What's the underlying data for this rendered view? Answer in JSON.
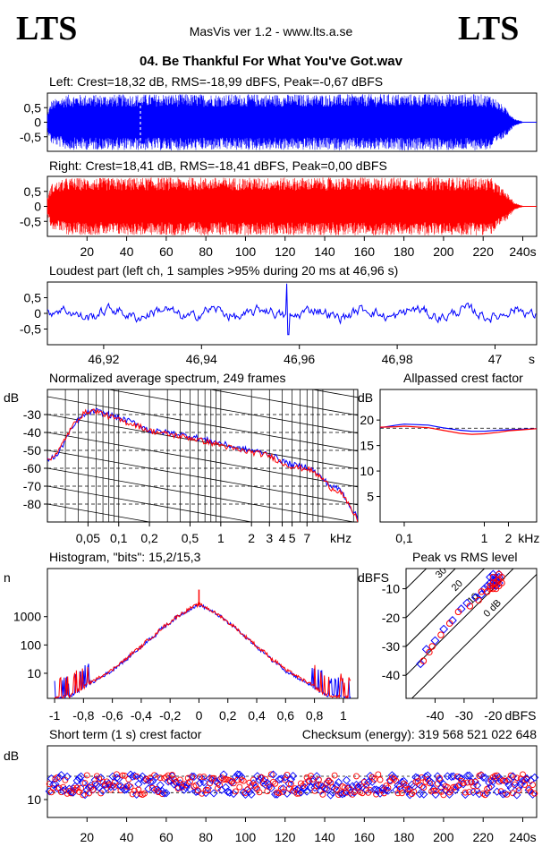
{
  "header": {
    "logo_left": "LTS",
    "logo_right": "LTS",
    "app_title": "MasVis ver 1.2 - www.lts.a.se",
    "file_title": "04. Be Thankful For What You've Got.wav"
  },
  "colors": {
    "left": "#0000ff",
    "right": "#ff0000",
    "axis": "#000000",
    "text": "#000000"
  },
  "chart_data": [
    {
      "id": "left-waveform",
      "type": "line",
      "title": "Left: Crest=18,32 dB, RMS=-18,99 dBFS, Peak=-0,67 dBFS",
      "ylim": [
        -1,
        1
      ],
      "y_ticks": [
        "0,5",
        "0",
        "-0,5"
      ],
      "y_tick_values": [
        0.5,
        0,
        -0.5
      ],
      "xlim": [
        0,
        247
      ],
      "envelope_x": [
        0,
        2,
        10,
        30,
        60,
        100,
        140,
        180,
        210,
        224,
        232,
        236,
        240,
        247
      ],
      "envelope_amp": [
        0.3,
        0.75,
        0.95,
        0.95,
        0.97,
        0.96,
        0.96,
        0.97,
        0.97,
        0.95,
        0.45,
        0.12,
        0.02,
        0.0
      ],
      "marker_x": 46.96
    },
    {
      "id": "right-waveform",
      "type": "line",
      "title": "Right: Crest=18,41 dB, RMS=-18,41 dBFS, Peak=0,00 dBFS",
      "ylim": [
        -1,
        1
      ],
      "y_ticks": [
        "0,5",
        "0",
        "-0,5"
      ],
      "y_tick_values": [
        0.5,
        0,
        -0.5
      ],
      "xlim": [
        0,
        247
      ],
      "x_ticks": [
        "20",
        "40",
        "60",
        "80",
        "100",
        "120",
        "140",
        "160",
        "180",
        "200",
        "220",
        "240s"
      ],
      "x_tick_values": [
        20,
        40,
        60,
        80,
        100,
        120,
        140,
        160,
        180,
        200,
        220,
        240
      ],
      "envelope_x": [
        0,
        2,
        10,
        30,
        60,
        100,
        140,
        180,
        210,
        224,
        232,
        236,
        240,
        247
      ],
      "envelope_amp": [
        0.3,
        0.75,
        0.95,
        0.95,
        0.97,
        0.96,
        0.96,
        0.97,
        0.97,
        0.95,
        0.45,
        0.12,
        0.02,
        0.0
      ]
    },
    {
      "id": "loudest-part",
      "type": "line",
      "title": "Loudest part (left  ch, 1 samples >95% during 20 ms at 46,96 s)",
      "xlim": [
        46.9085,
        47.0085
      ],
      "ylim": [
        -1,
        1
      ],
      "y_ticks": [
        "0,5",
        "0",
        "-0,5"
      ],
      "y_tick_values": [
        0.5,
        0,
        -0.5
      ],
      "x_ticks": [
        "46,92",
        "46,94",
        "46,96",
        "46,98",
        "47",
        "s"
      ],
      "x_tick_values": [
        46.92,
        46.94,
        46.96,
        46.98,
        47.0,
        47.0075
      ],
      "spike_x": 46.9574,
      "spike_values": [
        0.95,
        -0.68
      ],
      "baseline_noise": 0.12
    },
    {
      "id": "average-spectrum",
      "type": "line",
      "title": "Normalized average spectrum, 249 frames",
      "ylabel": "dB",
      "ylim": [
        -90,
        -16
      ],
      "y_ticks": [
        "-30",
        "-40",
        "-50",
        "-60",
        "-70",
        "-80"
      ],
      "y_tick_values": [
        -30,
        -40,
        -50,
        -60,
        -70,
        -80
      ],
      "x_scale": "log",
      "xlim": [
        0.02,
        22
      ],
      "x_ticks": [
        "0,05",
        "0,1",
        "0,2",
        "0,5",
        "1",
        "2",
        "3",
        "4",
        "5",
        "7",
        "kHz"
      ],
      "x_tick_values": [
        0.05,
        0.1,
        0.2,
        0.5,
        1,
        2,
        3,
        4,
        5,
        7,
        15
      ],
      "freq": [
        0.02,
        0.025,
        0.03,
        0.04,
        0.05,
        0.06,
        0.08,
        0.1,
        0.15,
        0.2,
        0.3,
        0.5,
        0.7,
        1,
        1.5,
        2,
        3,
        4,
        5,
        6,
        7,
        8,
        10,
        12,
        15,
        18,
        22
      ],
      "series": [
        {
          "name": "left",
          "values": [
            -55,
            -53,
            -44,
            -33,
            -29,
            -28,
            -30,
            -32,
            -35,
            -39,
            -40,
            -42,
            -44,
            -46,
            -49,
            -50,
            -52,
            -56,
            -58,
            -59,
            -59,
            -61,
            -66,
            -70,
            -72,
            -80,
            -88
          ]
        },
        {
          "name": "right",
          "values": [
            -55,
            -52,
            -43,
            -32,
            -28,
            -28,
            -31,
            -33,
            -36,
            -39,
            -41,
            -43,
            -45,
            -47,
            -50,
            -51,
            -53,
            -57,
            -59,
            -60,
            -60,
            -62,
            -66,
            -71,
            -73,
            -81,
            -89
          ]
        }
      ]
    },
    {
      "id": "allpassed-crest",
      "type": "line",
      "title": "Allpassed crest factor",
      "ylabel": "dB",
      "ylim": [
        0,
        26
      ],
      "y_ticks": [
        "20",
        "15",
        "10",
        "5"
      ],
      "y_tick_values": [
        20,
        15,
        10,
        5
      ],
      "x_scale": "log",
      "xlim": [
        0.05,
        4.5
      ],
      "x_ticks": [
        "0,1",
        "1",
        "2",
        "kHz"
      ],
      "x_tick_values": [
        0.1,
        1,
        2,
        3.6
      ],
      "reference_y": 18.4,
      "freq": [
        0.05,
        0.08,
        0.1,
        0.2,
        0.3,
        0.5,
        0.7,
        1,
        1.5,
        2,
        3,
        4.5
      ],
      "series": [
        {
          "name": "left",
          "values": [
            18.5,
            19,
            19.2,
            19.0,
            18.5,
            18.0,
            17.8,
            17.8,
            18.0,
            18.1,
            18.2,
            18.3
          ]
        },
        {
          "name": "right",
          "values": [
            18.6,
            18.7,
            18.8,
            18.5,
            18.0,
            17.4,
            17.2,
            17.3,
            17.6,
            17.9,
            18.1,
            18.3
          ]
        }
      ]
    },
    {
      "id": "histogram",
      "type": "line",
      "title": "Histogram, \"bits\": 15,2/15,3",
      "ylabel": "n",
      "y_scale": "log",
      "ylim": [
        1.3,
        50000
      ],
      "y_ticks": [
        "1000",
        "100",
        "10"
      ],
      "y_tick_values": [
        1000,
        100,
        10
      ],
      "xlim": [
        -1.05,
        1.1
      ],
      "x_ticks": [
        "-1",
        "-0,8",
        "-0,6",
        "-0,4",
        "-0,2",
        "0",
        "0,2",
        "0,4",
        "0,6",
        "0,8",
        "1"
      ],
      "x_tick_values": [
        -1,
        -0.8,
        -0.6,
        -0.4,
        -0.2,
        0,
        0.2,
        0.4,
        0.6,
        0.8,
        1
      ],
      "x": [
        -1,
        -0.95,
        -0.9,
        -0.85,
        -0.8,
        -0.7,
        -0.6,
        -0.5,
        -0.4,
        -0.3,
        -0.2,
        -0.1,
        -0.05,
        0,
        0.05,
        0.1,
        0.2,
        0.3,
        0.4,
        0.5,
        0.6,
        0.7,
        0.8,
        0.85,
        0.9,
        0.95,
        1,
        1.05
      ],
      "series": [
        {
          "name": "left",
          "values": [
            1.4,
            1.4,
            1.5,
            2,
            3,
            6,
            12,
            30,
            80,
            220,
            600,
            1400,
            2000,
            2600,
            2000,
            1400,
            600,
            220,
            80,
            30,
            12,
            6,
            3,
            2,
            1.6,
            1.5,
            1.4,
            1.4
          ]
        },
        {
          "name": "right",
          "values": [
            1.4,
            1.4,
            1.5,
            2.2,
            3.2,
            6.5,
            13,
            32,
            85,
            230,
            620,
            1450,
            2100,
            2700,
            2100,
            1450,
            620,
            230,
            85,
            32,
            13,
            6.5,
            3.2,
            2.2,
            1.6,
            1.5,
            1.4,
            1.4
          ]
        }
      ],
      "spike_x": 0,
      "spike_value": 9000
    },
    {
      "id": "peak-vs-rms",
      "type": "scatter",
      "title": "Peak vs RMS level",
      "ylabel": "dBFS",
      "xlabel": "dBFS",
      "xlim": [
        -50,
        -5
      ],
      "ylim": [
        -48,
        -3
      ],
      "x_ticks": [
        "-40",
        "-30",
        "-20",
        "dBFS"
      ],
      "x_tick_values": [
        -40,
        -30,
        -20,
        -9.5
      ],
      "y_ticks": [
        "-10",
        "-20",
        "-30",
        "-40"
      ],
      "y_tick_values": [
        -10,
        -20,
        -30,
        -40
      ],
      "crest_lines": [
        "40",
        "30",
        "20",
        "10",
        "0 dB"
      ],
      "crest_line_values": [
        40,
        30,
        20,
        10,
        0
      ],
      "series": [
        {
          "name": "left",
          "points": [
            [
              -45,
              -36
            ],
            [
              -43,
              -31
            ],
            [
              -40,
              -28
            ],
            [
              -37,
              -24
            ],
            [
              -34,
              -21
            ],
            [
              -31,
              -17
            ],
            [
              -29,
              -15
            ],
            [
              -26,
              -13
            ],
            [
              -24,
              -12
            ],
            [
              -23,
              -10
            ],
            [
              -22,
              -9
            ],
            [
              -21,
              -8
            ],
            [
              -20,
              -7
            ],
            [
              -19,
              -6
            ],
            [
              -18,
              -5
            ],
            [
              -20,
              -9
            ],
            [
              -19,
              -7
            ],
            [
              -18,
              -8
            ],
            [
              -21,
              -6
            ],
            [
              -20,
              -5
            ],
            [
              -19,
              -9
            ],
            [
              -18,
              -6
            ]
          ]
        },
        {
          "name": "right",
          "points": [
            [
              -44,
              -35
            ],
            [
              -42,
              -32
            ],
            [
              -41,
              -30
            ],
            [
              -38,
              -26
            ],
            [
              -35,
              -22
            ],
            [
              -32,
              -18
            ],
            [
              -28,
              -16
            ],
            [
              -25,
              -14
            ],
            [
              -24,
              -11
            ],
            [
              -22,
              -11
            ],
            [
              -21,
              -10
            ],
            [
              -20,
              -8
            ],
            [
              -19,
              -8
            ],
            [
              -18,
              -7
            ],
            [
              -17,
              -6
            ],
            [
              -20,
              -10
            ],
            [
              -19,
              -10
            ],
            [
              -18,
              -9
            ],
            [
              -17,
              -8
            ],
            [
              -21,
              -9
            ],
            [
              -20,
              -6
            ],
            [
              -18,
              -5
            ]
          ]
        }
      ]
    },
    {
      "id": "short-term-crest",
      "type": "scatter",
      "title": "Short term (1 s) crest factor",
      "annotation": "Checksum (energy):   319 568 521 022 648",
      "ylabel": "dB",
      "ylim": [
        4,
        28
      ],
      "y_ticks": [
        "10"
      ],
      "y_tick_values": [
        10
      ],
      "reference_lines": [
        12.3,
        17.8
      ],
      "xlim": [
        0,
        247
      ],
      "x_ticks": [
        "20",
        "40",
        "60",
        "80",
        "100",
        "120",
        "140",
        "160",
        "180",
        "200",
        "220",
        "240s"
      ],
      "x_tick_values": [
        20,
        40,
        60,
        80,
        100,
        120,
        140,
        160,
        180,
        200,
        220,
        240
      ],
      "center_y": 15,
      "spread_y": 3.5,
      "n_points": 247
    }
  ]
}
